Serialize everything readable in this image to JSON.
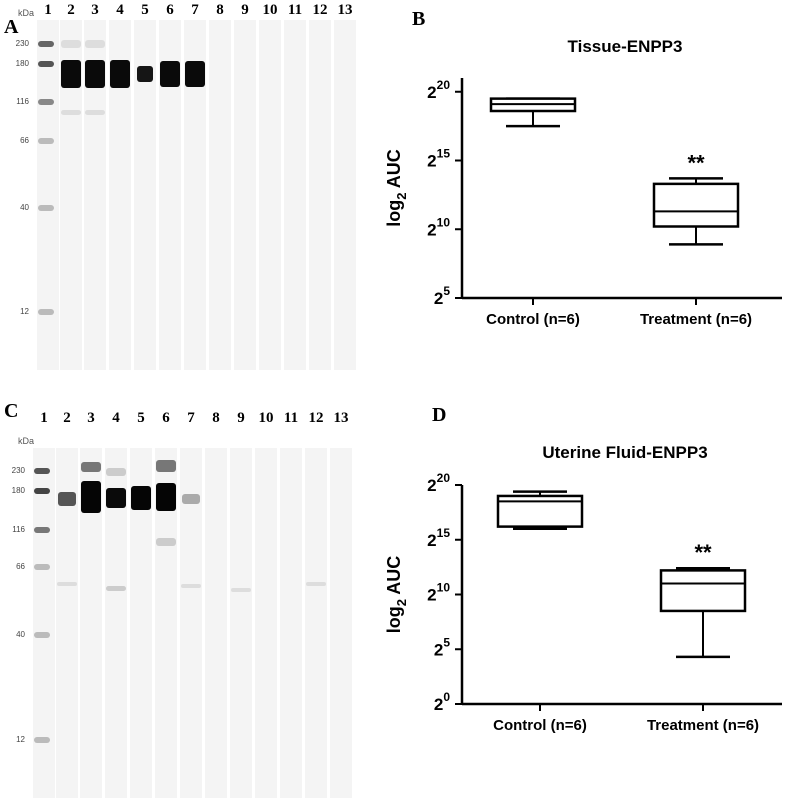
{
  "panels": {
    "A": {
      "letter": "A",
      "kda_label": "kDa",
      "lane_numbers": [
        "1",
        "2",
        "3",
        "4",
        "5",
        "6",
        "7",
        "8",
        "9",
        "10",
        "11",
        "12",
        "13"
      ],
      "mw_markers": [
        "230",
        "180",
        "116",
        "66",
        "40",
        "12"
      ]
    },
    "B": {
      "letter": "B"
    },
    "C": {
      "letter": "C",
      "kda_label": "kDa",
      "lane_numbers": [
        "1",
        "2",
        "3",
        "4",
        "5",
        "6",
        "7",
        "8",
        "9",
        "10",
        "11",
        "12",
        "13"
      ],
      "mw_markers": [
        "230",
        "180",
        "116",
        "66",
        "40",
        "12"
      ]
    },
    "D": {
      "letter": "D"
    }
  },
  "chart_data": [
    {
      "type": "box",
      "title": "Tissue-ENPP3",
      "ylabel_base": "log",
      "ylabel_sub": "2",
      "ylabel_rest": " AUC",
      "yscale": "log2",
      "ylim": [
        5,
        21
      ],
      "yticks": [
        {
          "base": "2",
          "exp": "5",
          "value": 5
        },
        {
          "base": "2",
          "exp": "10",
          "value": 10
        },
        {
          "base": "2",
          "exp": "15",
          "value": 15
        },
        {
          "base": "2",
          "exp": "20",
          "value": 20
        }
      ],
      "categories": [
        "Control (n=6)",
        "Treatment (n=6)"
      ],
      "boxes": [
        {
          "category": "Control (n=6)",
          "min": 17.5,
          "q1": 18.6,
          "median": 19.1,
          "q3": 19.5,
          "max": 19.5,
          "annotation": ""
        },
        {
          "category": "Treatment (n=6)",
          "min": 8.9,
          "q1": 10.2,
          "median": 11.3,
          "q3": 13.3,
          "max": 13.7,
          "annotation": "**"
        }
      ]
    },
    {
      "type": "box",
      "title": "Uterine Fluid-ENPP3",
      "ylabel_base": "log",
      "ylabel_sub": "2",
      "ylabel_rest": " AUC",
      "yscale": "log2",
      "ylim": [
        0,
        20
      ],
      "yticks": [
        {
          "base": "2",
          "exp": "0",
          "value": 0
        },
        {
          "base": "2",
          "exp": "5",
          "value": 5
        },
        {
          "base": "2",
          "exp": "10",
          "value": 10
        },
        {
          "base": "2",
          "exp": "15",
          "value": 15
        },
        {
          "base": "2",
          "exp": "20",
          "value": 20
        }
      ],
      "categories": [
        "Control (n=6)",
        "Treatment (n=6)"
      ],
      "boxes": [
        {
          "category": "Control (n=6)",
          "min": 16.0,
          "q1": 16.2,
          "median": 18.5,
          "q3": 19.0,
          "max": 19.4,
          "annotation": ""
        },
        {
          "category": "Treatment (n=6)",
          "min": 4.3,
          "q1": 8.5,
          "median": 11.0,
          "q3": 12.2,
          "max": 12.4,
          "annotation": "**"
        }
      ]
    }
  ]
}
